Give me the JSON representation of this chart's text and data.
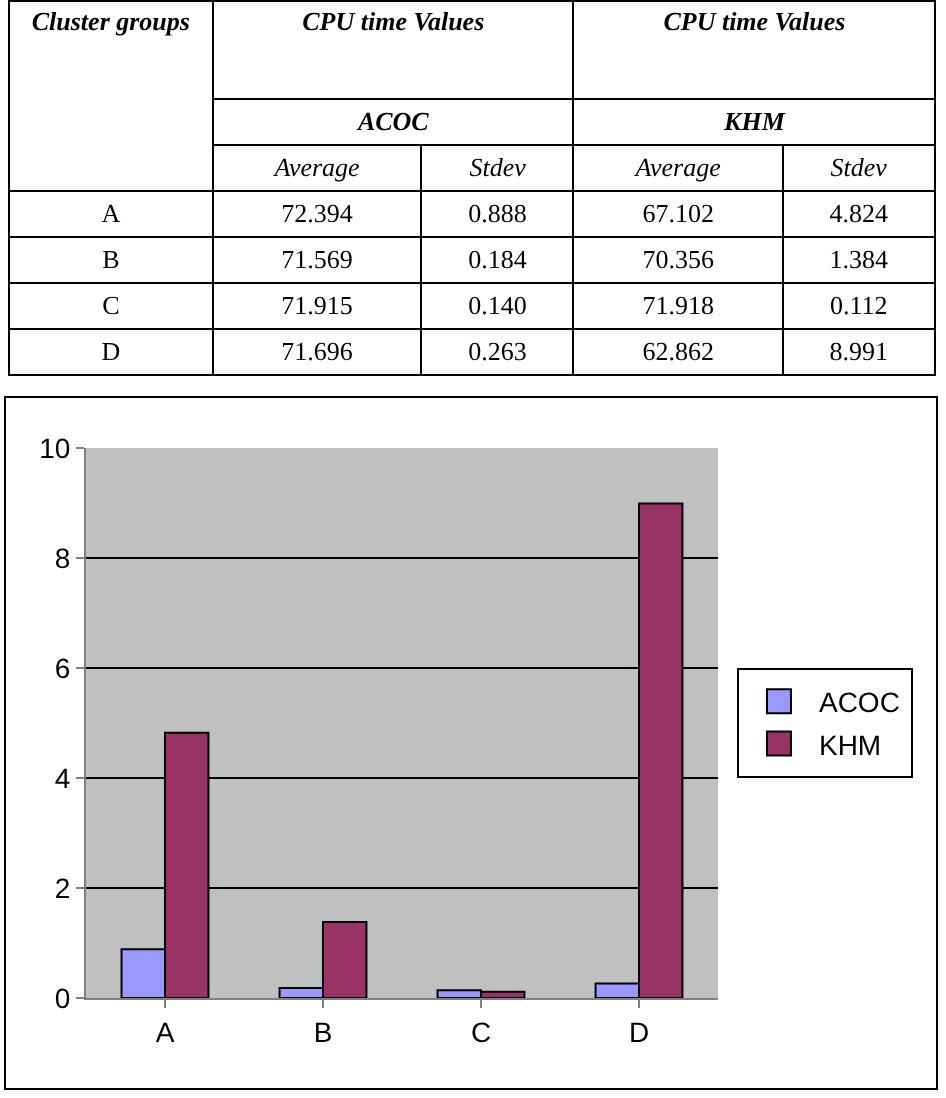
{
  "chart_data": [
    {
      "type": "other",
      "annotations": [
        "Cluster groups",
        "CPU time Values",
        "CPU time Values",
        "ACOC",
        "KHM"
      ],
      "categories": [
        "A",
        "B",
        "C",
        "D"
      ],
      "series": [
        {
          "name": "Average",
          "values": [
            72.394,
            71.569,
            71.915,
            71.696
          ],
          "value_labels": [
            "72.394",
            "71.569",
            "71.915",
            "71.696"
          ]
        },
        {
          "name": "Stdev",
          "values": [
            0.888,
            0.184,
            0.14,
            0.263
          ],
          "value_labels": [
            "0.888",
            "0.184",
            "0.140",
            "0.263"
          ]
        },
        {
          "name": "Average",
          "values": [
            67.102,
            70.356,
            71.918,
            62.862
          ],
          "value_labels": [
            "67.102",
            "70.356",
            "71.918",
            "62.862"
          ]
        },
        {
          "name": "Stdev",
          "values": [
            4.824,
            1.384,
            0.112,
            8.991
          ],
          "value_labels": [
            "4.824",
            "1.384",
            "0.112",
            "8.991"
          ]
        }
      ]
    },
    {
      "type": "bar",
      "categories": [
        "A",
        "B",
        "C",
        "D"
      ],
      "series": [
        {
          "name": "ACOC",
          "color": "#9999ff",
          "values": [
            0.888,
            0.184,
            0.14,
            0.263
          ]
        },
        {
          "name": "KHM",
          "color": "#993366",
          "values": [
            4.824,
            1.384,
            0.112,
            8.991
          ]
        }
      ],
      "ylim": [
        0,
        10
      ],
      "yticks": [
        0,
        2,
        4,
        6,
        8,
        10
      ],
      "grid": "y",
      "legend": "right"
    }
  ]
}
